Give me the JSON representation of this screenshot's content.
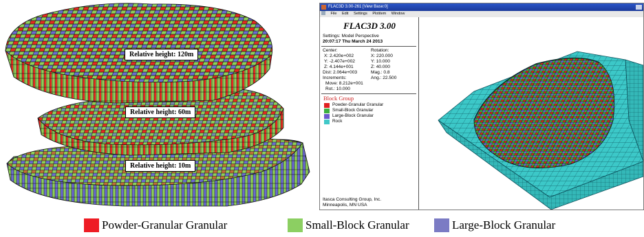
{
  "left_render": {
    "labels": [
      "Relative height: 120m",
      "Relative height: 60m",
      "Relative height: 10m"
    ]
  },
  "window": {
    "title": "FLAC3D 3.00-261   [View Base:0]",
    "menu": [
      "File",
      "Edit",
      "Settings",
      "Plotitem",
      "Window"
    ],
    "info": {
      "app_title": "FLAC3D 3.00",
      "settings": "Settings:  Model Perspective",
      "timestamp": "20:07:17 Thu March 24 2013",
      "center_label": "Center:",
      "rotation_label": "Rotation:",
      "center_x": "X: 2.420e+002",
      "center_y": "Y: -2.407e+002",
      "center_z": "Z: 4.144e+001",
      "rot_x": "X:  220.000",
      "rot_y": "Y:   10.000",
      "rot_z": "Z:   40.000",
      "dist": "Dist: 2.064e+003",
      "mag": "Mag.:      0.8",
      "increments": "Increments:",
      "ang": "Ang.:   22.500",
      "move": "Move: 8.212e+001",
      "rot": "Rot.:  10.000",
      "block_group_title": "Block Group",
      "legend": [
        {
          "label": "Powder-Granular Granular",
          "color": "#e02020"
        },
        {
          "label": "Small-Block Granular",
          "color": "#3cb040"
        },
        {
          "label": "Large-Block Granular",
          "color": "#6a5acd"
        },
        {
          "label": "Rock",
          "color": "#40c8c8"
        }
      ],
      "footer_company": "Itasca Consulting Group, Inc.",
      "footer_location": "Minneapolis, MN  USA"
    }
  },
  "bottom_legend": [
    {
      "label": "Powder-Granular Granular",
      "color": "#ee1c24"
    },
    {
      "label": "Small-Block Granular",
      "color": "#8ccf62"
    },
    {
      "label": "Large-Block Granular",
      "color": "#7b7bc4"
    }
  ],
  "colors": {
    "red": "#e52a22",
    "green": "#8ed05a",
    "blue": "#6b6bd0",
    "rock": "#3cc8c8"
  }
}
